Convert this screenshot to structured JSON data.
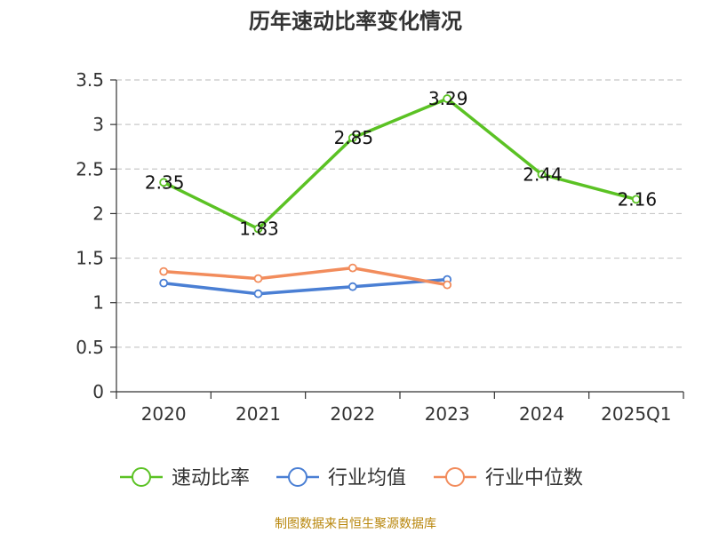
{
  "chart_data": {
    "type": "line",
    "title": "历年速动比率变化情况",
    "categories": [
      "2020",
      "2021",
      "2022",
      "2023",
      "2024",
      "2025Q1"
    ],
    "y_ticks": [
      "0",
      "0.5",
      "1",
      "1.5",
      "2",
      "2.5",
      "3",
      "3.5"
    ],
    "ylim": [
      0,
      3.5
    ],
    "grid": "horizontal dashed",
    "legend_position": "bottom",
    "series": [
      {
        "name": "速动比率",
        "color": "#5bc224",
        "values": [
          2.35,
          1.83,
          2.85,
          3.29,
          2.44,
          2.16
        ],
        "labels": [
          "2.35",
          "1.83",
          "2.85",
          "3.29",
          "2.44",
          "2.16"
        ]
      },
      {
        "name": "行业均值",
        "color": "#4a7fd4",
        "values": [
          1.22,
          1.1,
          1.18,
          1.26,
          null,
          null
        ]
      },
      {
        "name": "行业中位数",
        "color": "#f28c5c",
        "values": [
          1.35,
          1.27,
          1.39,
          1.2,
          null,
          null
        ]
      }
    ],
    "source": "制图数据来自恒生聚源数据库"
  }
}
